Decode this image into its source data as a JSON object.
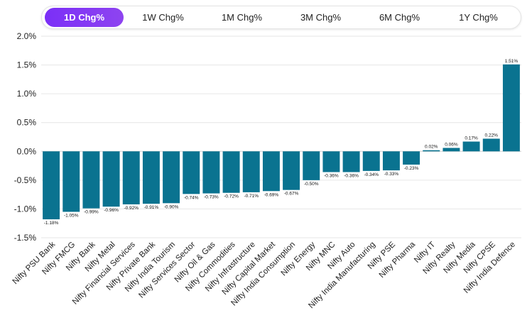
{
  "tabs": [
    {
      "label": "1D Chg%",
      "active": true
    },
    {
      "label": "1W Chg%",
      "active": false
    },
    {
      "label": "1M Chg%",
      "active": false
    },
    {
      "label": "3M Chg%",
      "active": false
    },
    {
      "label": "6M Chg%",
      "active": false
    },
    {
      "label": "1Y Chg%",
      "active": false
    }
  ],
  "colors": {
    "bar": "#0a7390",
    "accent": "#7b2ff7",
    "grid": "#e6e6e6"
  },
  "chart_data": {
    "type": "bar",
    "title": "",
    "xlabel": "",
    "ylabel": "",
    "ylim": [
      -1.5,
      2.0
    ],
    "yticks": [
      2.0,
      1.5,
      1.0,
      0.5,
      0.0,
      -0.5,
      -1.0,
      -1.5
    ],
    "ytick_labels": [
      "2.0%",
      "1.5%",
      "1.0%",
      "0.5%",
      "0.0%",
      "-0.5%",
      "-1.0%",
      "-1.5%"
    ],
    "grid": true,
    "categories": [
      "Nifty PSU Bank",
      "Nifty FMCG",
      "Nifty Bank",
      "Nifty Metal",
      "Nifty Financial Services",
      "Nifty Private Bank",
      "Nifty India Tourism",
      "Nifty Services Sector",
      "Nifty Oil & Gas",
      "Nifty Commodities",
      "Nifty Infrastructure",
      "Nifty Capital Market",
      "Nifty India Consumption",
      "Nifty Energy",
      "Nifty MNC",
      "Nifty Auto",
      "Nifty India Manufacturing",
      "Nifty PSE",
      "Nifty Pharma",
      "Nifty IT",
      "Nifty Realty",
      "Nifty Media",
      "Nifty CPSE",
      "Nifty India Defence"
    ],
    "values": [
      -1.18,
      -1.05,
      -0.99,
      -0.96,
      -0.92,
      -0.91,
      -0.9,
      -0.74,
      -0.73,
      -0.72,
      -0.71,
      -0.69,
      -0.67,
      -0.5,
      -0.36,
      -0.36,
      -0.34,
      -0.33,
      -0.23,
      0.02,
      0.06,
      0.17,
      0.22,
      1.51
    ],
    "labels": [
      "-1.18%",
      "-1.05%",
      "-0.99%",
      "-0.96%",
      "-0.92%",
      "-0.91%",
      "-0.90%",
      "-0.74%",
      "-0.73%",
      "-0.72%",
      "-0.71%",
      "-0.69%",
      "-0.67%",
      "-0.50%",
      "-0.36%",
      "-0.36%",
      "-0.34%",
      "-0.33%",
      "-0.23%",
      "0.02%",
      "0.06%",
      "0.17%",
      "0.22%",
      "1.51%"
    ]
  }
}
